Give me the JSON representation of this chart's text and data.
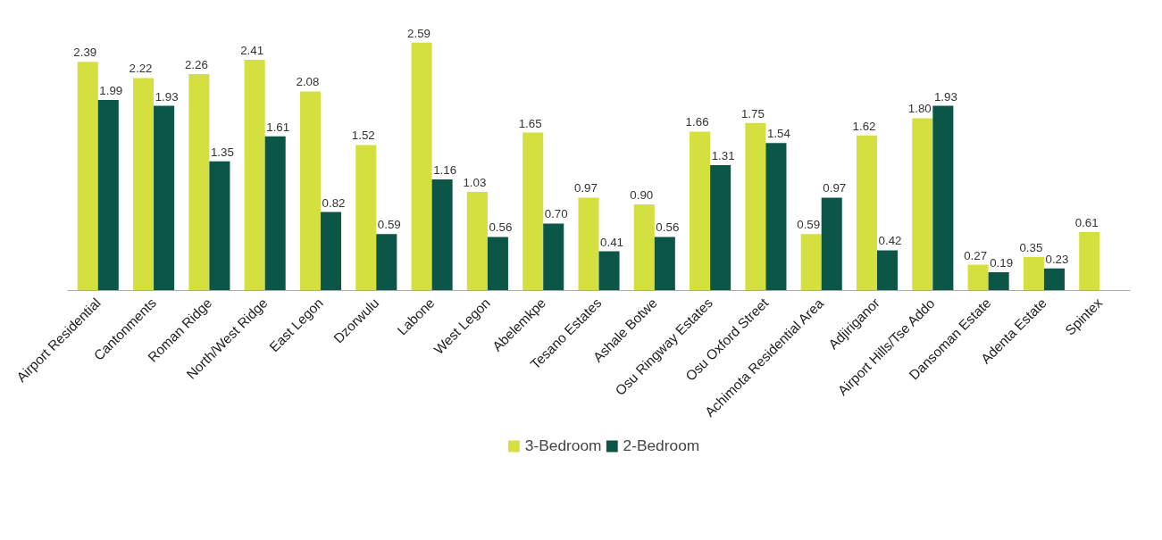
{
  "chart_data": {
    "type": "bar",
    "categories": [
      "Airport Residential",
      "Cantonments",
      "Roman Ridge",
      "North/West Ridge",
      "East Legon",
      "Dzorwulu",
      "Labone",
      "West Legon",
      "Abelemkpe",
      "Tesano Estates",
      "Ashale Botwe",
      "Osu Ringway Estates",
      "Osu Oxford Street",
      "Achimota Residential Area",
      "Adjiriganor",
      "Airport Hills/Tse Addo",
      "Dansoman Estate",
      "Adenta Estate",
      "Spintex"
    ],
    "series": [
      {
        "name": "3-Bedroom",
        "color": "#d4e03f",
        "values": [
          2.39,
          2.22,
          2.26,
          2.41,
          2.08,
          1.52,
          2.59,
          1.03,
          1.65,
          0.97,
          0.9,
          1.66,
          1.75,
          0.59,
          1.62,
          1.8,
          0.27,
          0.35,
          0.61
        ],
        "value_labels": [
          "2.39",
          "2.22",
          "2.26",
          "2.41",
          "2.08",
          "1.52",
          "2.59",
          "1.03",
          "1.65",
          "0.97",
          "0.90",
          "1.66",
          "1.75",
          "0.59",
          "1.62",
          "1.80",
          "0.27",
          "0.35",
          "0.61"
        ]
      },
      {
        "name": "2-Bedroom",
        "color": "#0c5647",
        "values": [
          1.99,
          1.93,
          1.35,
          1.61,
          0.82,
          0.59,
          1.16,
          0.56,
          0.7,
          0.41,
          0.56,
          1.31,
          1.54,
          0.97,
          0.42,
          1.93,
          0.19,
          0.23,
          null
        ],
        "value_labels": [
          "1.99",
          "1.93",
          "1.35",
          "1.61",
          "0.82",
          "0.59",
          "1.16",
          "0.56",
          "0.70",
          "0.41",
          "0.56",
          "1.31",
          "1.54",
          "0.97",
          "0.42",
          "1.93",
          "0.19",
          "0.23",
          null
        ]
      }
    ],
    "legend": "bottom"
  }
}
